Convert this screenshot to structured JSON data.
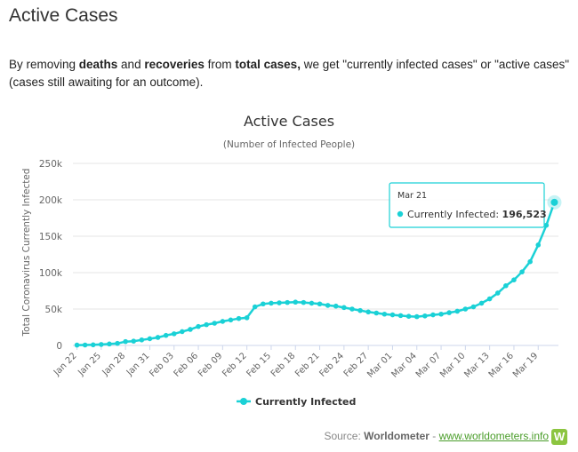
{
  "page": {
    "heading": "Active Cases",
    "intro": {
      "t1": "By removing ",
      "b1": "deaths",
      "t2": " and ",
      "b2": "recoveries",
      "t3": " from ",
      "b3": "total cases,",
      "t4": " we get \"currently infected cases\" or \"active cases\" (cases still awaiting for an outcome)."
    },
    "source": {
      "label": "Source: ",
      "name": "Worldometer",
      "dash": " - ",
      "link": "www.worldometers.info",
      "logo_letter": "W"
    }
  },
  "colors": {
    "series": "#1ad1d6",
    "grid": "#e6e6e6",
    "tooltip_border": "#1ad1d6"
  },
  "tooltip": {
    "date": "Mar 21",
    "series_label": "Currently Infected: ",
    "value": "196,523"
  },
  "chart_data": {
    "type": "line",
    "title": "Active Cases",
    "subtitle": "(Number of Infected People)",
    "ylabel": "Total Coronavirus Currently Infected",
    "xlabel": "",
    "ylim": [
      0,
      250000
    ],
    "yticks": [
      0,
      50000,
      100000,
      150000,
      200000,
      250000
    ],
    "ytick_labels": [
      "0",
      "50k",
      "100k",
      "150k",
      "200k",
      "250k"
    ],
    "grid": true,
    "legend": "bottom-center",
    "xtick_labels": [
      "Jan 22",
      "Jan 25",
      "Jan 28",
      "Jan 31",
      "Feb 03",
      "Feb 06",
      "Feb 09",
      "Feb 12",
      "Feb 15",
      "Feb 18",
      "Feb 21",
      "Feb 24",
      "Feb 27",
      "Mar 01",
      "Mar 04",
      "Mar 07",
      "Mar 10",
      "Mar 13",
      "Mar 16",
      "Mar 19"
    ],
    "x": [
      "Jan 22",
      "Jan 23",
      "Jan 24",
      "Jan 25",
      "Jan 26",
      "Jan 27",
      "Jan 28",
      "Jan 29",
      "Jan 30",
      "Jan 31",
      "Feb 01",
      "Feb 02",
      "Feb 03",
      "Feb 04",
      "Feb 05",
      "Feb 06",
      "Feb 07",
      "Feb 08",
      "Feb 09",
      "Feb 10",
      "Feb 11",
      "Feb 12",
      "Feb 13",
      "Feb 14",
      "Feb 15",
      "Feb 16",
      "Feb 17",
      "Feb 18",
      "Feb 19",
      "Feb 20",
      "Feb 21",
      "Feb 22",
      "Feb 23",
      "Feb 24",
      "Feb 25",
      "Feb 26",
      "Feb 27",
      "Feb 28",
      "Feb 29",
      "Mar 01",
      "Mar 02",
      "Mar 03",
      "Mar 04",
      "Mar 05",
      "Mar 06",
      "Mar 07",
      "Mar 08",
      "Mar 09",
      "Mar 10",
      "Mar 11",
      "Mar 12",
      "Mar 13",
      "Mar 14",
      "Mar 15",
      "Mar 16",
      "Mar 17",
      "Mar 18",
      "Mar 19",
      "Mar 20",
      "Mar 21"
    ],
    "series": [
      {
        "name": "Currently Infected",
        "values": [
          500,
          600,
          850,
          1350,
          2000,
          2800,
          5300,
          5900,
          7600,
          9200,
          11000,
          13800,
          16000,
          19000,
          22000,
          26000,
          28500,
          30500,
          33000,
          35000,
          37000,
          38000,
          53000,
          57000,
          58000,
          58500,
          59000,
          59500,
          59000,
          58000,
          57000,
          55000,
          54000,
          52000,
          50000,
          48000,
          46000,
          44500,
          43000,
          42000,
          41000,
          40000,
          39500,
          40500,
          42000,
          43000,
          45000,
          47000,
          50000,
          53000,
          58000,
          64000,
          72000,
          82000,
          90000,
          101000,
          115000,
          138000,
          165000,
          196523
        ]
      }
    ]
  }
}
